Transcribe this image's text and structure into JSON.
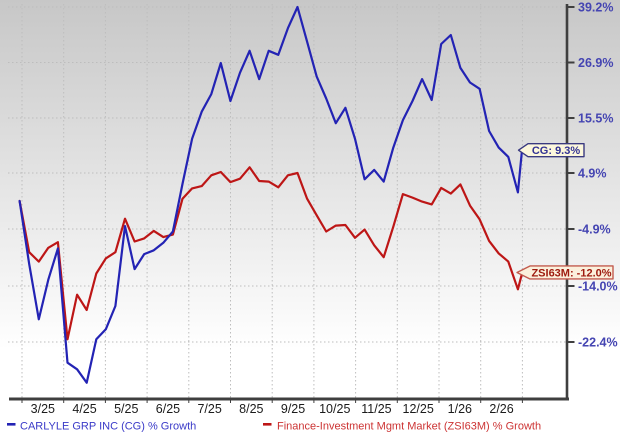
{
  "chart_data": {
    "type": "line",
    "title": "",
    "x_axis": {
      "tick_labels": [
        "3/25",
        "4/25",
        "5/25",
        "6/25",
        "7/25",
        "8/25",
        "9/25",
        "10/25",
        "11/25",
        "12/25",
        "1/26",
        "2/26"
      ],
      "label_color": "#1b1b1b"
    },
    "y_axis": {
      "position": "right",
      "tick_labels": [
        "39.2%",
        "26.9%",
        "15.5%",
        "4.9%",
        "-4.9%",
        "-14.0%",
        "-22.4%"
      ],
      "tick_values": [
        39.2,
        26.9,
        15.5,
        4.9,
        -4.9,
        -14.0,
        -22.4
      ],
      "label_color": "#4545b2",
      "scale": "log-growth"
    },
    "grid": true,
    "legend_position": "bottom",
    "dates": [
      "2025-02-27",
      "2025-03-06",
      "2025-03-13",
      "2025-03-20",
      "2025-03-27",
      "2025-04-03",
      "2025-04-10",
      "2025-04-17",
      "2025-04-24",
      "2025-05-01",
      "2025-05-08",
      "2025-05-15",
      "2025-05-22",
      "2025-05-29",
      "2025-06-05",
      "2025-06-12",
      "2025-06-19",
      "2025-06-26",
      "2025-07-03",
      "2025-07-10",
      "2025-07-17",
      "2025-07-24",
      "2025-07-31",
      "2025-08-07",
      "2025-08-14",
      "2025-08-21",
      "2025-08-28",
      "2025-09-04",
      "2025-09-11",
      "2025-09-18",
      "2025-09-25",
      "2025-10-02",
      "2025-10-09",
      "2025-10-16",
      "2025-10-23",
      "2025-10-30",
      "2025-11-06",
      "2025-11-13",
      "2025-11-20",
      "2025-11-27",
      "2025-12-04",
      "2025-12-11",
      "2025-12-18",
      "2025-12-25",
      "2026-01-01",
      "2026-01-08",
      "2026-01-15",
      "2026-01-22",
      "2026-01-29",
      "2026-02-05",
      "2026-02-12",
      "2026-02-19",
      "2026-02-26",
      "2026-03-01"
    ],
    "series": [
      {
        "name": "Finance-Investment Mgmt Market (ZSI63M) % Growth",
        "ticker": "ZSI63M",
        "color": "#bd1616",
        "legend_text_color": "#cc3333",
        "end_label": "ZSI63M: -12.0%",
        "end_value": -12.0,
        "values": [
          0.0,
          -8.6,
          -10.1,
          -7.9,
          -7.0,
          -22.0,
          -15.3,
          -17.6,
          -12.0,
          -9.6,
          -8.6,
          -3.1,
          -6.9,
          -6.4,
          -5.2,
          -6.2,
          -5.8,
          0.4,
          2.2,
          2.6,
          4.5,
          5.1,
          3.3,
          3.9,
          6.0,
          3.5,
          3.4,
          2.4,
          4.5,
          4.9,
          0.4,
          -2.5,
          -5.3,
          -4.3,
          -4.2,
          -6.3,
          -5.0,
          -7.5,
          -9.4,
          -4.5,
          1.2,
          0.6,
          -0.1,
          -0.6,
          2.3,
          1.3,
          2.9,
          -0.8,
          -3.2,
          -6.8,
          -8.8,
          -10.1,
          -14.5,
          -12.0
        ]
      },
      {
        "name": "CARLYLE GRP INC (CG) % Growth",
        "ticker": "CG",
        "color": "#2323b4",
        "legend_text_color": "#3a3ac8",
        "end_label": "CG: 9.3%",
        "end_value": 9.3,
        "values": [
          0.0,
          -10.5,
          -19.0,
          -13.0,
          -8.0,
          -25.5,
          -26.5,
          -28.5,
          -22.0,
          -20.5,
          -17.0,
          -4.4,
          -11.3,
          -8.9,
          -8.3,
          -7.1,
          -5.3,
          3.0,
          11.5,
          16.8,
          20.4,
          26.8,
          19.0,
          24.8,
          29.5,
          23.5,
          29.5,
          28.6,
          34.5,
          39.2,
          31.5,
          24.0,
          19.5,
          14.5,
          17.6,
          11.5,
          3.8,
          5.5,
          3.4,
          9.8,
          15.1,
          19.0,
          23.5,
          19.2,
          31.0,
          33.0,
          25.8,
          22.8,
          21.5,
          13.0,
          9.8,
          8.0,
          1.5,
          9.3
        ]
      }
    ],
    "callouts": {
      "cg": {
        "label": "CG: 9.3%",
        "bg": "#fcf7dc",
        "border": "#3a3a80",
        "text_color": "#323294"
      },
      "zsi63m": {
        "label": "ZSI63M: -12.0%",
        "bg": "#fbf0dc",
        "border": "#c25b4e",
        "text_color": "#9e1a0e"
      }
    },
    "colors": {
      "background_top": "#c7c7c7",
      "background_bottom": "#ffffff",
      "gridline": "#bdbdbd",
      "axis": "#3f3f3f"
    }
  }
}
